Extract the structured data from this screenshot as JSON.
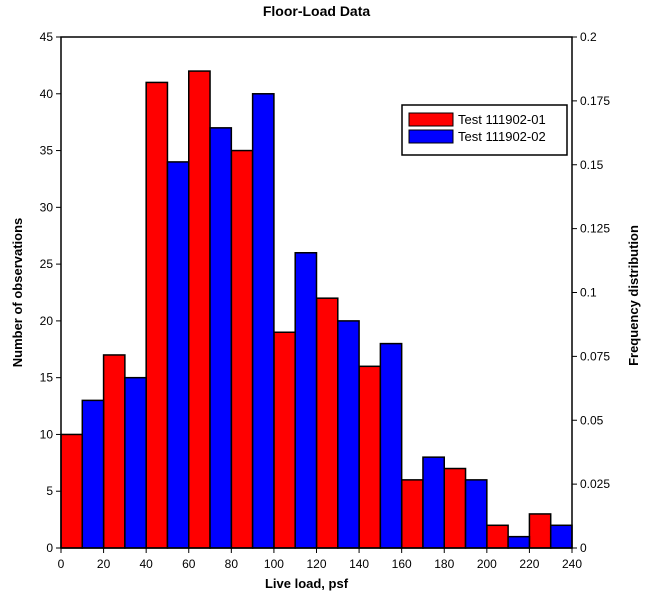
{
  "chart_data": {
    "type": "bar",
    "title": "Floor-Load Data",
    "xlabel": "Live load, psf",
    "ylabel": "Number of observations",
    "y2label": "Frequency distribution",
    "xlim": [
      0,
      240
    ],
    "ylim": [
      0,
      45
    ],
    "y2lim": [
      0,
      0.2
    ],
    "bin_width": 10,
    "xticks": [
      "0",
      "20",
      "40",
      "60",
      "80",
      "100",
      "120",
      "140",
      "160",
      "180",
      "200",
      "220",
      "240"
    ],
    "yticks": [
      "0",
      "5",
      "10",
      "15",
      "20",
      "25",
      "30",
      "35",
      "40",
      "45"
    ],
    "y2ticks": [
      "0",
      "0.025",
      "0.05",
      "0.075",
      "0.1",
      "0.125",
      "0.15",
      "0.175",
      "0.2"
    ],
    "legend_position": "top-right",
    "colors": {
      "series1": "#ff0000",
      "series2": "#0000ff",
      "outline": "#000000"
    },
    "series": [
      {
        "name": "Test 111902-01",
        "bin_starts": [
          0,
          20,
          40,
          60,
          80,
          100,
          120,
          140,
          160,
          180,
          200,
          220
        ],
        "values": [
          10,
          17,
          41,
          42,
          35,
          19,
          22,
          16,
          6,
          7,
          2,
          3
        ]
      },
      {
        "name": "Test 111902-02",
        "bin_starts": [
          10,
          30,
          50,
          70,
          90,
          110,
          130,
          150,
          170,
          190,
          210,
          230
        ],
        "values": [
          13,
          15,
          34,
          37,
          40,
          26,
          20,
          18,
          8,
          6,
          1,
          2
        ]
      }
    ]
  }
}
